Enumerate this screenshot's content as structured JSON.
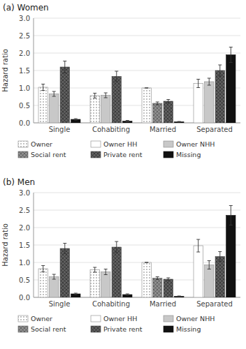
{
  "chart_data": [
    {
      "type": "bar",
      "title": "(a) Women",
      "y_label": "Hazard ratio",
      "categories": [
        "Single",
        "Cohabiting",
        "Married",
        "Separated"
      ],
      "series": [
        {
          "name": "Owner",
          "color": "#ffffff",
          "values": [
            1.02,
            0.78,
            1.0,
            null
          ],
          "errors": [
            0.09,
            0.07,
            0.0,
            null
          ]
        },
        {
          "name": "Owner HH",
          "color": "#ffffff",
          "values": [
            null,
            null,
            null,
            1.13
          ],
          "errors": [
            null,
            null,
            null,
            0.12
          ]
        },
        {
          "name": "Owner NHH",
          "color": "#c8c8c8",
          "values": [
            0.83,
            0.79,
            null,
            1.18
          ],
          "errors": [
            0.07,
            0.07,
            null,
            0.1
          ]
        },
        {
          "name": "Social rent",
          "color": "#909090",
          "values": [
            null,
            null,
            0.56,
            null
          ],
          "errors": [
            null,
            null,
            0.04,
            null
          ]
        },
        {
          "name": "Private rent",
          "color": "#606060",
          "values": [
            1.6,
            1.33,
            0.62,
            1.5
          ],
          "errors": [
            0.17,
            0.15,
            0.05,
            0.16
          ]
        },
        {
          "name": "Missing",
          "color": "#111111",
          "values": [
            0.1,
            0.05,
            0.03,
            1.95
          ],
          "errors": [
            0.02,
            0.02,
            0.01,
            0.22
          ]
        }
      ],
      "ylim": [
        0,
        3
      ],
      "yticks": [
        {
          "value": 0,
          "label": "0.0"
        },
        0.5,
        {
          "value": 1,
          "label": "1.0"
        },
        1.5,
        {
          "value": 2,
          "label": "2.0"
        },
        2.5,
        {
          "value": 3,
          "label": "3.0"
        }
      ],
      "grid": true,
      "legend": "bottom"
    },
    {
      "type": "bar",
      "title": "(b) Men",
      "y_label": "Hazard ratio",
      "categories": [
        "Single",
        "Cohabiting",
        "Married",
        "Separated"
      ],
      "series": [
        {
          "name": "Owner",
          "color": "#ffffff",
          "values": [
            0.82,
            0.79,
            1.0,
            null
          ],
          "errors": [
            0.09,
            0.07,
            0.0,
            null
          ]
        },
        {
          "name": "Owner HH",
          "color": "#ffffff",
          "values": [
            null,
            null,
            null,
            1.48
          ],
          "errors": [
            null,
            null,
            null,
            0.18
          ]
        },
        {
          "name": "Owner NHH",
          "color": "#c8c8c8",
          "values": [
            0.59,
            0.73,
            null,
            0.93
          ],
          "errors": [
            0.07,
            0.08,
            null,
            0.12
          ]
        },
        {
          "name": "Social rent",
          "color": "#909090",
          "values": [
            null,
            null,
            0.55,
            null
          ],
          "errors": [
            null,
            null,
            0.04,
            null
          ]
        },
        {
          "name": "Private rent",
          "color": "#606060",
          "values": [
            1.4,
            1.44,
            0.52,
            1.17
          ],
          "errors": [
            0.15,
            0.16,
            0.04,
            0.14
          ]
        },
        {
          "name": "Missing",
          "color": "#111111",
          "values": [
            0.1,
            0.08,
            0.03,
            2.35
          ],
          "errors": [
            0.02,
            0.02,
            0.01,
            0.28
          ]
        }
      ],
      "ylim": [
        0,
        3
      ],
      "yticks": [
        {
          "value": 0,
          "label": "0.0"
        },
        0.5,
        {
          "value": 1,
          "label": "1.0"
        },
        1.5,
        {
          "value": 2,
          "label": "2.0"
        },
        2.5,
        {
          "value": 3,
          "label": "3.0"
        }
      ],
      "grid": true,
      "legend": "bottom"
    }
  ]
}
